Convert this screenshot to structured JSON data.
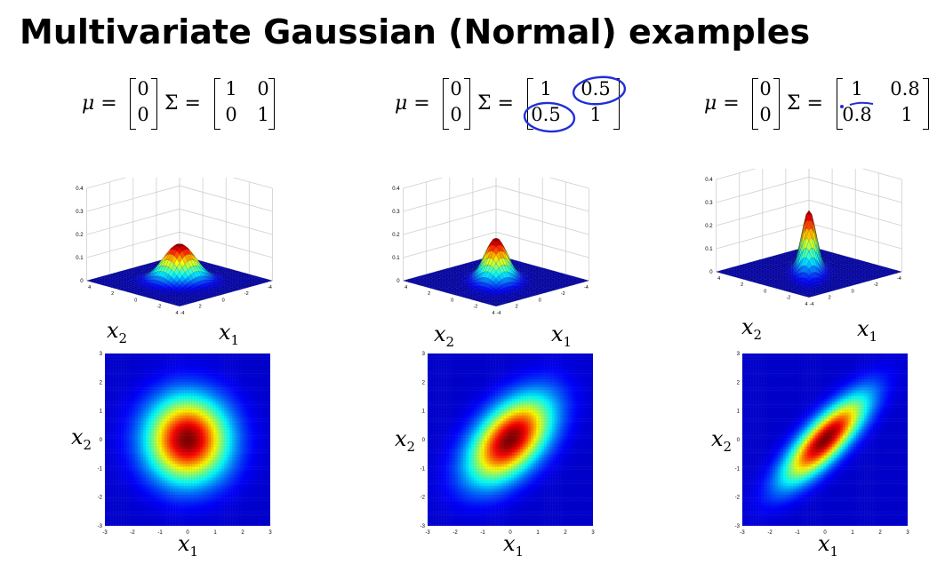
{
  "slide": {
    "title": "Multivariate Gaussian (Normal) examples"
  },
  "panels": [
    {
      "mu_label": "μ =",
      "mu": [
        "0",
        "0"
      ],
      "sigma_label": "Σ =",
      "sigma": [
        [
          "1",
          "0"
        ],
        [
          "0",
          "1"
        ]
      ],
      "rho": 0,
      "circled": [],
      "z_ticks": [
        "0",
        "0.1",
        "0.2",
        "0.3",
        "0.4"
      ],
      "xy_ticks_3d": [
        "-4",
        "-2",
        "0",
        "2",
        "4"
      ],
      "heat_ticks": [
        "-3",
        "-2",
        "-1",
        "0",
        "1",
        "2",
        "3"
      ],
      "xlabel": "x",
      "xlabel_sub": "1",
      "ylabel": "x",
      "ylabel_sub": "2"
    },
    {
      "mu_label": "μ =",
      "mu": [
        "0",
        "0"
      ],
      "sigma_label": "Σ =",
      "sigma": [
        [
          "1",
          "0.5"
        ],
        [
          "0.5",
          "1"
        ]
      ],
      "rho": 0.5,
      "circled": [
        "0.5 (top-right)",
        "0.5 (bottom-left)"
      ],
      "z_ticks": [
        "0",
        "0.1",
        "0.2",
        "0.3",
        "0.4"
      ],
      "xy_ticks_3d": [
        "-4",
        "-2",
        "0",
        "2",
        "4"
      ],
      "heat_ticks": [
        "-3",
        "-2",
        "-1",
        "0",
        "1",
        "2",
        "3"
      ],
      "xlabel": "x",
      "xlabel_sub": "1",
      "ylabel": "x",
      "ylabel_sub": "2"
    },
    {
      "mu_label": "μ =",
      "mu": [
        "0",
        "0"
      ],
      "sigma_label": "Σ =",
      "sigma": [
        [
          "1",
          "0.8"
        ],
        [
          "0.8",
          "1"
        ]
      ],
      "rho": 0.8,
      "circled": [],
      "z_ticks": [
        "0",
        "0.1",
        "0.2",
        "0.3",
        "0.4"
      ],
      "xy_ticks_3d": [
        "-4",
        "-2",
        "0",
        "2",
        "4"
      ],
      "heat_ticks": [
        "-3",
        "-2",
        "-1",
        "0",
        "1",
        "2",
        "3"
      ],
      "xlabel": "x",
      "xlabel_sub": "1",
      "ylabel": "x",
      "ylabel_sub": "2"
    }
  ],
  "colors": {
    "annotation_ink": "#1f2fd6",
    "surface_colormap": "jet"
  }
}
